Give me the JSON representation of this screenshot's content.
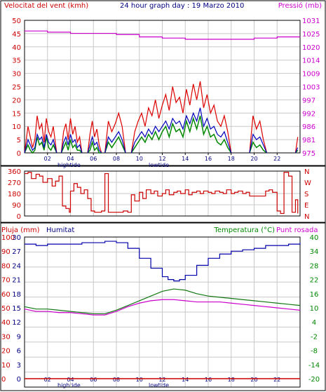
{
  "header": {
    "wind_label": "Velocitat del vent (kmh)",
    "title": "24 hour graph day : 19 Marzo 2010",
    "pressure_label": "Pressió (mb)"
  },
  "bottom_header": {
    "rain_label": "Pluja (mm)",
    "humidity_label": "Humitat",
    "temperature_label": "Temperatura (°C)",
    "dewpoint_label": "Punt rosada"
  },
  "x_labels": {
    "hours": [
      "02",
      "04",
      "06",
      "08",
      "10",
      "12",
      "14",
      "16",
      "18",
      "20",
      "22"
    ],
    "hightide": "hightide",
    "lowtide": "lowtide"
  },
  "colors": {
    "wind_gust": "#dd0000",
    "wind_avg": "#0000bb",
    "wind_green": "#008800",
    "pressure": "#cc00cc",
    "direction": "#cc0000",
    "humidity": "#0000aa",
    "temperature": "#117711",
    "dewpoint": "#cc00cc",
    "rain": "#cc0000",
    "grid": "#c8c8c8",
    "axis_red": "#cc0000",
    "axis_magenta": "#cc00cc",
    "axis_green": "#008800",
    "axis_navy": "#000080"
  },
  "chart_data": [
    {
      "type": "line",
      "name": "wind-pressure",
      "x_range": [
        0,
        24
      ],
      "y_left_ticks": [
        0,
        5,
        10,
        15,
        20,
        25,
        30,
        35,
        40,
        45,
        50
      ],
      "y_left_range": [
        0,
        50
      ],
      "y_right_ticks": [
        975,
        981,
        986,
        992,
        997,
        1003,
        1009,
        1014,
        1020,
        1025,
        1031
      ],
      "y_right_range": [
        975,
        1031
      ],
      "pressure": {
        "x": [
          0,
          2,
          4,
          6,
          8,
          10,
          12,
          14,
          16,
          18,
          20,
          22,
          24
        ],
        "y": [
          1026.5,
          1026,
          1025.5,
          1025.5,
          1025,
          1024,
          1023.5,
          1023,
          1023,
          1023,
          1023.5,
          1024,
          1024
        ],
        "step": true
      },
      "wind_segments": [
        {
          "x": [
            0.0,
            0.3,
            0.5,
            0.7,
            0.9,
            1.1,
            1.3,
            1.5,
            1.7,
            1.9,
            2.1,
            2.3,
            2.5,
            2.8
          ],
          "gust": [
            0,
            10,
            6,
            2,
            5,
            14,
            9,
            11,
            4,
            13,
            8,
            6,
            10,
            0
          ],
          "avg": [
            0,
            5,
            3,
            1,
            2,
            7,
            5,
            6,
            2,
            7,
            4,
            3,
            5,
            0
          ],
          "green": [
            0,
            3,
            1,
            0,
            1,
            6,
            3,
            4,
            1,
            6,
            2,
            1,
            3,
            0
          ]
        },
        {
          "x": [
            3.2,
            3.4,
            3.6,
            3.8,
            4.0,
            4.2,
            4.4,
            4.6,
            4.8,
            5.0
          ],
          "gust": [
            0,
            8,
            11,
            5,
            13,
            7,
            10,
            4,
            6,
            0
          ],
          "avg": [
            0,
            4,
            6,
            3,
            7,
            4,
            5,
            2,
            3,
            0
          ],
          "green": [
            0,
            2,
            4,
            1,
            5,
            2,
            3,
            1,
            1,
            0
          ]
        },
        {
          "x": [
            5.5,
            5.7,
            5.9,
            6.1,
            6.3,
            6.5,
            6.7
          ],
          "gust": [
            0,
            7,
            12,
            6,
            9,
            3,
            0
          ],
          "avg": [
            0,
            3,
            6,
            3,
            4,
            1,
            0
          ],
          "green": [
            0,
            1,
            4,
            1,
            2,
            0,
            0
          ]
        },
        {
          "x": [
            7.0,
            7.3,
            7.6,
            7.9,
            8.2,
            8.5,
            8.8
          ],
          "gust": [
            0,
            12,
            8,
            11,
            15,
            10,
            0
          ],
          "avg": [
            0,
            6,
            4,
            6,
            8,
            5,
            0
          ],
          "green": [
            0,
            4,
            2,
            4,
            6,
            3,
            0
          ]
        },
        {
          "x": [
            9.3,
            9.6,
            9.9,
            10.2,
            10.5,
            10.8,
            11.1,
            11.4,
            11.7,
            12.0,
            12.3,
            12.6,
            12.9,
            13.2,
            13.5,
            13.8,
            14.1,
            14.4,
            14.7,
            15.0,
            15.3,
            15.6,
            15.9,
            16.2,
            16.5,
            16.8,
            17.1,
            17.4,
            17.7,
            18.0
          ],
          "gust": [
            0,
            8,
            12,
            15,
            10,
            17,
            14,
            20,
            13,
            18,
            22,
            16,
            25,
            19,
            21,
            15,
            24,
            18,
            26,
            20,
            27,
            17,
            22,
            15,
            18,
            12,
            10,
            14,
            8,
            0
          ],
          "avg": [
            0,
            4,
            6,
            8,
            6,
            9,
            7,
            10,
            8,
            10,
            12,
            9,
            13,
            11,
            12,
            9,
            14,
            11,
            15,
            12,
            17,
            10,
            13,
            9,
            10,
            7,
            6,
            8,
            4,
            0
          ],
          "green": [
            0,
            2,
            4,
            6,
            4,
            7,
            5,
            8,
            5,
            8,
            10,
            6,
            11,
            8,
            9,
            6,
            12,
            8,
            13,
            9,
            14,
            7,
            10,
            6,
            7,
            4,
            3,
            5,
            2,
            0
          ]
        },
        {
          "x": [
            19.6,
            19.9,
            20.2,
            20.5,
            20.8,
            21.1
          ],
          "gust": [
            0,
            14,
            9,
            12,
            5,
            0
          ],
          "avg": [
            0,
            7,
            5,
            6,
            3,
            0
          ],
          "green": [
            0,
            4,
            2,
            3,
            1,
            0
          ]
        },
        {
          "x": [
            23.6,
            23.8
          ],
          "gust": [
            0,
            6
          ],
          "avg": [
            0,
            2
          ],
          "green": [
            0,
            1
          ]
        }
      ]
    },
    {
      "type": "line",
      "name": "wind-direction",
      "x_range": [
        0,
        24
      ],
      "y_left_ticks": [
        0,
        90,
        180,
        270,
        360
      ],
      "y_range": [
        0,
        360
      ],
      "y_right_labels": [
        "N",
        "W",
        "S",
        "E",
        "N"
      ],
      "x": [
        0.0,
        0.3,
        0.6,
        1.0,
        1.3,
        1.6,
        2.0,
        2.4,
        2.7,
        3.0,
        3.3,
        3.6,
        3.9,
        4.0,
        4.3,
        4.6,
        4.9,
        5.2,
        5.5,
        5.8,
        6.1,
        6.4,
        6.7,
        7.0,
        7.3,
        7.6,
        8.0,
        8.3,
        8.6,
        9.0,
        9.3,
        9.6,
        10.0,
        10.3,
        10.6,
        11.0,
        11.3,
        11.6,
        12.0,
        12.3,
        12.6,
        13.0,
        13.3,
        13.6,
        14.0,
        14.3,
        14.6,
        15.0,
        15.3,
        15.6,
        16.0,
        16.3,
        16.6,
        17.0,
        17.3,
        17.6,
        18.0,
        18.3,
        18.6,
        19.0,
        19.3,
        19.6,
        19.8,
        20.0,
        20.3,
        20.6,
        21.0,
        21.3,
        21.6,
        22.0,
        22.3,
        22.6,
        22.8,
        23.0,
        23.3,
        23.6,
        23.8
      ],
      "y": [
        340,
        350,
        300,
        335,
        320,
        270,
        300,
        240,
        280,
        320,
        80,
        60,
        30,
        200,
        260,
        230,
        180,
        210,
        140,
        40,
        30,
        30,
        40,
        340,
        30,
        30,
        30,
        30,
        40,
        30,
        170,
        120,
        190,
        140,
        210,
        180,
        200,
        160,
        180,
        210,
        170,
        190,
        200,
        180,
        210,
        170,
        190,
        200,
        180,
        200,
        190,
        180,
        200,
        190,
        180,
        210,
        180,
        190,
        200,
        180,
        190,
        160,
        160,
        160,
        160,
        160,
        200,
        210,
        190,
        40,
        20,
        350,
        350,
        320,
        30,
        130,
        20
      ]
    },
    {
      "type": "line",
      "name": "humidity-temperature",
      "x_range": [
        0,
        24
      ],
      "y_rain_ticks": [
        0,
        10,
        20,
        30,
        40,
        50,
        60,
        70,
        80,
        90,
        100
      ],
      "rain_range": [
        0,
        100
      ],
      "y_humidity_ticks": [
        0,
        3,
        6,
        9,
        12,
        15,
        18,
        21,
        24,
        27,
        30
      ],
      "humidity_tick_labels": [
        "0",
        "3",
        "6",
        "9",
        "12",
        "15",
        "18",
        "21",
        "24",
        "27",
        "30"
      ],
      "y_temperature_ticks": [
        -20,
        -14,
        -8,
        -2,
        4,
        10,
        16,
        22,
        28,
        34,
        40
      ],
      "temperature_range": [
        -20,
        40
      ],
      "humidity": {
        "x": [
          0,
          1,
          2,
          3,
          4,
          5,
          6,
          7,
          8,
          9,
          10,
          11,
          12,
          12.5,
          13,
          13.5,
          14,
          15,
          16,
          17,
          18,
          19,
          20,
          21,
          22,
          23,
          24
        ],
        "y": [
          95,
          94,
          95,
          95,
          95,
          96,
          96,
          97,
          96,
          92,
          85,
          78,
          72,
          70,
          69,
          70,
          73,
          80,
          85,
          88,
          90,
          91,
          92,
          94,
          94,
          95,
          96
        ]
      },
      "temperature": {
        "x": [
          0,
          1,
          2,
          3,
          4,
          5,
          6,
          7,
          8,
          9,
          10,
          11,
          12,
          13,
          14,
          15,
          16,
          17,
          18,
          19,
          20,
          21,
          22,
          23,
          24
        ],
        "y": [
          10.5,
          9.5,
          9.5,
          9,
          8.5,
          8,
          7.5,
          7.5,
          9,
          11,
          13,
          15,
          17,
          18,
          17.5,
          16,
          15,
          14.5,
          14,
          13.5,
          13,
          12.5,
          12,
          11.5,
          11
        ]
      },
      "dewpoint": {
        "x": [
          0,
          1,
          2,
          3,
          4,
          5,
          6,
          7,
          8,
          9,
          10,
          11,
          12,
          13,
          14,
          15,
          16,
          17,
          18,
          19,
          20,
          21,
          22,
          23,
          24
        ],
        "y": [
          9.5,
          8.5,
          8.5,
          8,
          8,
          7.5,
          7,
          7,
          8.5,
          10.5,
          12,
          13,
          13.5,
          13.5,
          13,
          12.5,
          12.5,
          12.5,
          12,
          11.5,
          11,
          10.5,
          10,
          9.5,
          9
        ]
      },
      "rain": {
        "x": [
          0,
          24
        ],
        "y": [
          0,
          0
        ]
      }
    }
  ]
}
